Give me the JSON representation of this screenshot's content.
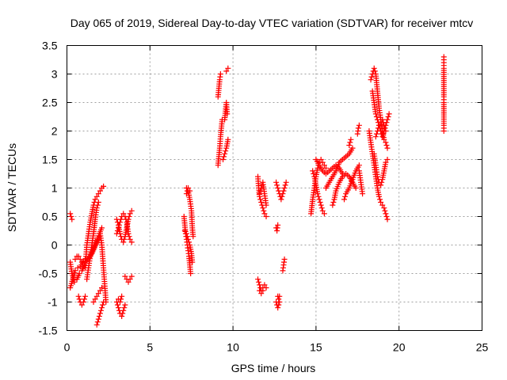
{
  "chart_data": {
    "type": "scatter",
    "title": "Day 065 of 2019, Sidereal Day-to-day VTEC variation (SDTVAR) for receiver mtcv",
    "xlabel": "GPS time / hours",
    "ylabel": "SDTVAR / TECUs",
    "xlim": [
      0,
      25
    ],
    "ylim": [
      -1.5,
      3.5
    ],
    "xticks": [
      0,
      5,
      10,
      15,
      20,
      25
    ],
    "xtick_labels": [
      "0",
      "5",
      "10",
      "15",
      "20",
      "25"
    ],
    "yticks": [
      -1.5,
      -1,
      -0.5,
      0,
      0.5,
      1,
      1.5,
      2,
      2.5,
      3,
      3.5
    ],
    "ytick_labels": [
      "-1.5",
      "-1",
      "-0.5",
      "0",
      "0.5",
      "1",
      "1.5",
      "2",
      "2.5",
      "3",
      "3.5"
    ],
    "grid": true,
    "marker": "+",
    "color": "#ff0000",
    "tracks": [
      [
        [
          0.2,
          0.55
        ],
        [
          0.25,
          0.5
        ],
        [
          0.3,
          0.45
        ]
      ],
      [
        [
          0.2,
          -0.3
        ],
        [
          0.3,
          -0.5
        ],
        [
          0.45,
          -0.65
        ],
        [
          0.6,
          -0.6
        ],
        [
          0.75,
          -0.5
        ],
        [
          0.9,
          -0.45
        ],
        [
          1.05,
          -0.35
        ],
        [
          1.2,
          -0.28
        ],
        [
          1.35,
          -0.22
        ],
        [
          1.5,
          -0.15
        ],
        [
          1.65,
          -0.05
        ],
        [
          1.8,
          0.05
        ],
        [
          1.95,
          0.2
        ],
        [
          2.1,
          0.3
        ]
      ],
      [
        [
          0.2,
          -0.75
        ],
        [
          0.35,
          -0.6
        ],
        [
          0.5,
          -0.45
        ],
        [
          0.65,
          -0.4
        ],
        [
          0.8,
          -0.38
        ],
        [
          0.95,
          -0.32
        ],
        [
          1.1,
          -0.28
        ],
        [
          1.25,
          -0.25
        ],
        [
          1.4,
          -0.2
        ],
        [
          1.55,
          -0.1
        ],
        [
          1.7,
          0.0
        ],
        [
          1.85,
          0.1
        ],
        [
          1.95,
          0.15
        ]
      ],
      [
        [
          0.5,
          -0.25
        ],
        [
          0.6,
          -0.2
        ],
        [
          0.7,
          -0.2
        ],
        [
          0.8,
          -0.25
        ],
        [
          0.9,
          -0.3
        ],
        [
          1.0,
          -0.28
        ],
        [
          1.1,
          -0.25
        ]
      ],
      [
        [
          0.7,
          -0.9
        ],
        [
          0.8,
          -1.0
        ],
        [
          0.9,
          -1.05
        ],
        [
          1.0,
          -1.0
        ],
        [
          1.1,
          -0.9
        ]
      ],
      [
        [
          1.1,
          -0.4
        ],
        [
          1.15,
          -0.2
        ],
        [
          1.2,
          0.0
        ],
        [
          1.3,
          0.2
        ],
        [
          1.4,
          0.4
        ],
        [
          1.5,
          0.55
        ],
        [
          1.6,
          0.7
        ],
        [
          1.7,
          0.8
        ],
        [
          1.8,
          0.85
        ],
        [
          1.9,
          0.9
        ],
        [
          2.0,
          0.95
        ],
        [
          2.1,
          1.0
        ],
        [
          2.2,
          1.03
        ]
      ],
      [
        [
          1.2,
          -0.6
        ],
        [
          1.3,
          -0.4
        ],
        [
          1.4,
          -0.2
        ],
        [
          1.5,
          0.0
        ],
        [
          1.6,
          0.2
        ],
        [
          1.7,
          0.45
        ],
        [
          1.8,
          0.65
        ],
        [
          1.9,
          0.75
        ]
      ],
      [
        [
          1.6,
          -1.0
        ],
        [
          1.7,
          -0.95
        ],
        [
          1.8,
          -0.9
        ],
        [
          1.9,
          -0.85
        ],
        [
          2.0,
          -0.8
        ],
        [
          2.1,
          -0.75
        ]
      ],
      [
        [
          1.8,
          -1.4
        ],
        [
          1.9,
          -1.3
        ],
        [
          2.0,
          -1.2
        ],
        [
          2.1,
          -1.1
        ],
        [
          2.2,
          -1.0
        ]
      ],
      [
        [
          2.0,
          0.2
        ],
        [
          2.1,
          0.0
        ],
        [
          2.15,
          -0.2
        ],
        [
          2.2,
          -0.4
        ],
        [
          2.25,
          -0.6
        ],
        [
          2.3,
          -0.8
        ],
        [
          2.35,
          -1.0
        ]
      ],
      [
        [
          3.0,
          0.2
        ],
        [
          3.1,
          0.3
        ],
        [
          3.2,
          0.4
        ],
        [
          3.3,
          0.5
        ],
        [
          3.4,
          0.55
        ],
        [
          3.5,
          0.5
        ],
        [
          3.6,
          0.4
        ],
        [
          3.7,
          0.2
        ],
        [
          3.8,
          0.1
        ],
        [
          3.9,
          0.05
        ]
      ],
      [
        [
          3.0,
          0.45
        ],
        [
          3.1,
          0.35
        ],
        [
          3.2,
          0.2
        ],
        [
          3.3,
          0.1
        ],
        [
          3.4,
          0.05
        ],
        [
          3.5,
          0.15
        ],
        [
          3.6,
          0.3
        ],
        [
          3.7,
          0.45
        ],
        [
          3.8,
          0.55
        ],
        [
          3.9,
          0.6
        ]
      ],
      [
        [
          3.0,
          -1.0
        ],
        [
          3.1,
          -1.1
        ],
        [
          3.2,
          -1.2
        ],
        [
          3.3,
          -1.25
        ],
        [
          3.4,
          -1.15
        ],
        [
          3.5,
          -1.05
        ]
      ],
      [
        [
          3.1,
          -0.95
        ],
        [
          3.2,
          -1.0
        ],
        [
          3.3,
          -0.9
        ]
      ],
      [
        [
          3.5,
          -0.55
        ],
        [
          3.6,
          -0.6
        ],
        [
          3.7,
          -0.65
        ],
        [
          3.8,
          -0.6
        ],
        [
          3.9,
          -0.55
        ]
      ],
      [
        [
          7.05,
          0.5
        ],
        [
          7.1,
          0.35
        ],
        [
          7.15,
          0.2
        ],
        [
          7.2,
          0.1
        ],
        [
          7.25,
          0.0
        ],
        [
          7.3,
          -0.1
        ],
        [
          7.35,
          -0.2
        ],
        [
          7.4,
          -0.35
        ],
        [
          7.45,
          -0.5
        ]
      ],
      [
        [
          7.1,
          0.25
        ],
        [
          7.2,
          0.2
        ],
        [
          7.3,
          0.1
        ],
        [
          7.4,
          0.0
        ],
        [
          7.5,
          -0.15
        ],
        [
          7.55,
          -0.3
        ]
      ],
      [
        [
          7.2,
          1.0
        ],
        [
          7.3,
          0.95
        ],
        [
          7.4,
          0.8
        ],
        [
          7.5,
          0.6
        ],
        [
          7.55,
          0.3
        ],
        [
          7.6,
          0.15
        ]
      ],
      [
        [
          7.2,
          0.9
        ],
        [
          7.3,
          1.0
        ],
        [
          7.4,
          0.95
        ]
      ],
      [
        [
          9.1,
          1.4
        ],
        [
          9.15,
          1.55
        ],
        [
          9.2,
          1.7
        ],
        [
          9.25,
          1.9
        ],
        [
          9.3,
          2.05
        ],
        [
          9.35,
          2.2
        ]
      ],
      [
        [
          9.1,
          2.6
        ],
        [
          9.15,
          2.75
        ],
        [
          9.2,
          2.9
        ],
        [
          9.25,
          3.0
        ]
      ],
      [
        [
          9.4,
          1.5
        ],
        [
          9.5,
          1.6
        ],
        [
          9.6,
          1.7
        ],
        [
          9.7,
          1.85
        ]
      ],
      [
        [
          9.5,
          2.2
        ],
        [
          9.55,
          2.35
        ],
        [
          9.6,
          2.5
        ],
        [
          9.65,
          2.3
        ]
      ],
      [
        [
          9.6,
          3.05
        ],
        [
          9.7,
          3.1
        ]
      ],
      [
        [
          11.5,
          1.2
        ],
        [
          11.55,
          1.0
        ],
        [
          11.6,
          0.85
        ],
        [
          11.7,
          0.75
        ],
        [
          11.8,
          0.65
        ],
        [
          11.9,
          0.55
        ],
        [
          12.0,
          0.5
        ]
      ],
      [
        [
          11.6,
          0.9
        ],
        [
          11.7,
          1.0
        ],
        [
          11.8,
          1.1
        ],
        [
          11.9,
          0.9
        ],
        [
          12.0,
          0.7
        ]
      ],
      [
        [
          11.5,
          -0.6
        ],
        [
          11.6,
          -0.7
        ],
        [
          11.7,
          -0.8
        ],
        [
          11.8,
          -0.75
        ],
        [
          11.9,
          -0.7
        ],
        [
          12.0,
          -0.75
        ]
      ],
      [
        [
          11.6,
          -0.8
        ],
        [
          11.7,
          -0.85
        ],
        [
          11.8,
          -0.8
        ]
      ],
      [
        [
          12.6,
          1.1
        ],
        [
          12.7,
          1.0
        ],
        [
          12.8,
          0.9
        ],
        [
          12.9,
          0.8
        ],
        [
          13.0,
          0.9
        ],
        [
          13.1,
          1.0
        ],
        [
          13.2,
          1.1
        ]
      ],
      [
        [
          12.6,
          0.3
        ],
        [
          12.65,
          0.25
        ],
        [
          12.7,
          0.35
        ]
      ],
      [
        [
          12.6,
          -1.0
        ],
        [
          12.7,
          -1.1
        ],
        [
          12.8,
          -1.0
        ]
      ],
      [
        [
          12.7,
          -0.9
        ],
        [
          12.75,
          -0.95
        ],
        [
          12.8,
          -0.9
        ]
      ],
      [
        [
          13.0,
          -0.45
        ],
        [
          13.05,
          -0.35
        ],
        [
          13.1,
          -0.25
        ]
      ],
      [
        [
          14.7,
          0.55
        ],
        [
          14.8,
          0.8
        ],
        [
          14.9,
          1.0
        ],
        [
          15.0,
          1.2
        ],
        [
          15.1,
          1.35
        ],
        [
          15.2,
          1.45
        ],
        [
          15.3,
          1.5
        ],
        [
          15.4,
          1.45
        ],
        [
          15.5,
          1.4
        ],
        [
          15.6,
          1.35
        ]
      ],
      [
        [
          14.8,
          1.3
        ],
        [
          14.9,
          1.2
        ],
        [
          15.0,
          1.05
        ],
        [
          15.1,
          0.9
        ],
        [
          15.2,
          0.8
        ],
        [
          15.3,
          0.7
        ],
        [
          15.4,
          0.6
        ],
        [
          15.5,
          0.55
        ]
      ],
      [
        [
          15.0,
          1.5
        ],
        [
          15.2,
          1.4
        ],
        [
          15.4,
          1.3
        ],
        [
          15.6,
          1.25
        ],
        [
          15.8,
          1.3
        ],
        [
          16.0,
          1.35
        ],
        [
          16.2,
          1.4
        ],
        [
          16.4,
          1.35
        ],
        [
          16.6,
          1.25
        ]
      ],
      [
        [
          15.6,
          1.0
        ],
        [
          15.8,
          1.1
        ],
        [
          16.0,
          1.2
        ],
        [
          16.2,
          1.3
        ],
        [
          16.4,
          1.45
        ],
        [
          16.6,
          1.5
        ],
        [
          16.8,
          1.55
        ],
        [
          17.0,
          1.6
        ],
        [
          17.2,
          1.7
        ]
      ],
      [
        [
          16.0,
          0.7
        ],
        [
          16.1,
          0.8
        ],
        [
          16.2,
          0.95
        ],
        [
          16.4,
          1.1
        ],
        [
          16.6,
          1.2
        ],
        [
          16.8,
          1.25
        ],
        [
          17.0,
          1.2
        ],
        [
          17.2,
          1.1
        ],
        [
          17.4,
          1.0
        ]
      ],
      [
        [
          16.7,
          0.8
        ],
        [
          16.8,
          0.9
        ],
        [
          17.0,
          1.0
        ],
        [
          17.2,
          1.15
        ],
        [
          17.4,
          1.3
        ],
        [
          17.6,
          1.4
        ]
      ],
      [
        [
          17.0,
          1.75
        ],
        [
          17.1,
          1.85
        ]
      ],
      [
        [
          17.5,
          1.95
        ],
        [
          17.55,
          2.05
        ],
        [
          17.6,
          2.1
        ]
      ],
      [
        [
          17.6,
          1.3
        ],
        [
          17.7,
          1.1
        ],
        [
          17.8,
          0.9
        ]
      ],
      [
        [
          18.3,
          2.9
        ],
        [
          18.4,
          3.0
        ],
        [
          18.5,
          3.1
        ],
        [
          18.6,
          3.0
        ],
        [
          18.7,
          2.7
        ],
        [
          18.8,
          2.4
        ],
        [
          18.9,
          2.2
        ],
        [
          19.0,
          2.0
        ],
        [
          19.1,
          1.85
        ],
        [
          19.2,
          1.8
        ],
        [
          19.3,
          1.7
        ]
      ],
      [
        [
          18.4,
          2.7
        ],
        [
          18.5,
          2.5
        ],
        [
          18.6,
          2.3
        ],
        [
          18.7,
          2.2
        ],
        [
          18.8,
          2.1
        ],
        [
          18.9,
          2.0
        ],
        [
          19.0,
          1.9
        ],
        [
          19.1,
          2.0
        ],
        [
          19.2,
          2.1
        ],
        [
          19.3,
          2.2
        ],
        [
          19.4,
          2.3
        ]
      ],
      [
        [
          18.2,
          2.0
        ],
        [
          18.3,
          1.8
        ],
        [
          18.4,
          1.6
        ],
        [
          18.5,
          1.4
        ],
        [
          18.6,
          1.2
        ],
        [
          18.7,
          1.0
        ],
        [
          18.8,
          0.85
        ],
        [
          18.9,
          0.75
        ],
        [
          19.0,
          0.7
        ],
        [
          19.1,
          0.65
        ],
        [
          19.2,
          0.55
        ],
        [
          19.3,
          0.45
        ]
      ],
      [
        [
          18.5,
          1.6
        ],
        [
          18.6,
          1.4
        ],
        [
          18.7,
          1.2
        ],
        [
          18.8,
          1.1
        ],
        [
          18.9,
          1.05
        ],
        [
          19.0,
          1.15
        ],
        [
          19.1,
          1.3
        ],
        [
          19.2,
          1.45
        ],
        [
          19.3,
          1.5
        ]
      ],
      [
        [
          18.6,
          1.9
        ],
        [
          18.7,
          2.0
        ],
        [
          18.8,
          2.1
        ],
        [
          18.9,
          2.15
        ],
        [
          19.0,
          2.2
        ],
        [
          19.1,
          2.1
        ],
        [
          19.2,
          2.0
        ]
      ],
      [
        [
          22.7,
          3.3
        ],
        [
          22.7,
          3.2
        ],
        [
          22.7,
          3.1
        ],
        [
          22.7,
          2.6
        ],
        [
          22.7,
          2.5
        ],
        [
          22.7,
          2.1
        ],
        [
          22.7,
          2.0
        ]
      ]
    ]
  }
}
